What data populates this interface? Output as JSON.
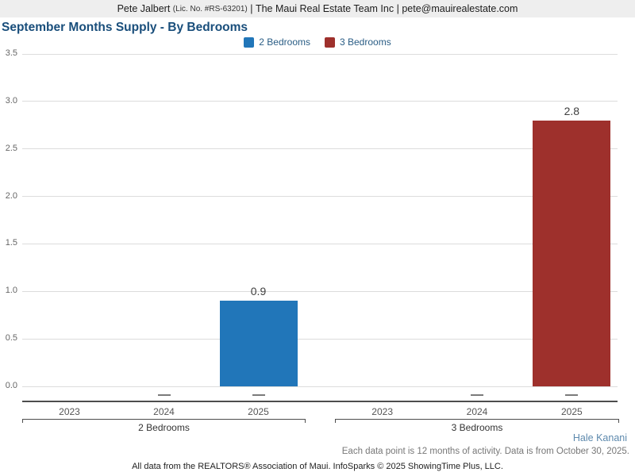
{
  "header": {
    "agent_name": "Pete Jalbert",
    "license": "(Lic. No. #RS-63201)",
    "separator1": " | ",
    "company": "The Maui Real Estate Team Inc",
    "separator2": " | ",
    "email": "pete@mauirealestate.com"
  },
  "title": "September Months Supply - By Bedrooms",
  "legend": [
    {
      "label": "2 Bedrooms",
      "color": "#2176b9"
    },
    {
      "label": "3 Bedrooms",
      "color": "#9e302c"
    }
  ],
  "chart_data": {
    "type": "bar",
    "title": "September Months Supply - By Bedrooms",
    "ylim": [
      0,
      3.5
    ],
    "yticks": [
      3.5,
      3.0,
      2.5,
      2.0,
      1.5,
      1.0,
      0.5,
      0.0
    ],
    "grid": "horizontal",
    "legend_position": "top-center",
    "no_change_symbol": "—",
    "groups": [
      {
        "label": "2 Bedrooms",
        "color": "#2176b9",
        "years": [
          "2023",
          "2024",
          "2025"
        ],
        "values": [
          null,
          null,
          0.9
        ],
        "value_labels": [
          "",
          "",
          "0.9"
        ],
        "change_markers": [
          "",
          "—",
          "—"
        ]
      },
      {
        "label": "3 Bedrooms",
        "color": "#9e302c",
        "years": [
          "2023",
          "2024",
          "2025"
        ],
        "values": [
          null,
          null,
          2.8
        ],
        "value_labels": [
          "",
          "",
          "2.8"
        ],
        "change_markers": [
          "",
          "—",
          "—"
        ]
      }
    ]
  },
  "footer": {
    "area_label": "Hale Kanani",
    "note": "Each data point is 12 months of activity. Data is from October 30, 2025.",
    "attribution": "All data from the REALTORS® Association of Maui. InfoSparks © 2025 ShowingTime Plus, LLC."
  }
}
